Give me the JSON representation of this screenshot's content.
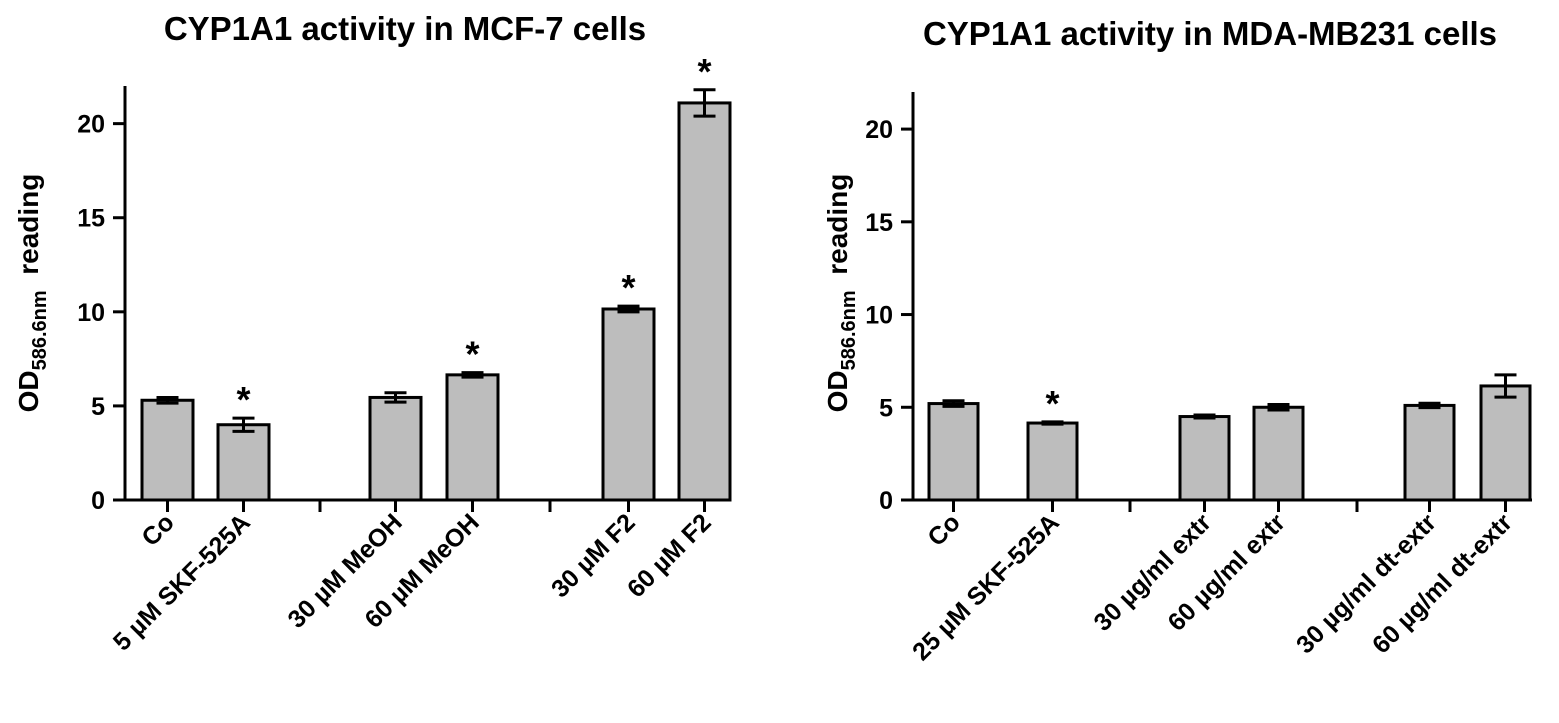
{
  "chart_data": [
    {
      "type": "bar",
      "title": "CYP1A1 activity in MCF-7 cells",
      "ylabel_main": "OD",
      "ylabel_sub": "586.6nm",
      "ylabel_tail": "reading",
      "ylim": [
        0,
        22
      ],
      "yticks": [
        0,
        5,
        10,
        15,
        20
      ],
      "groups": [
        {
          "categories": [
            "Co",
            "5 µM SKF-525A"
          ],
          "values": [
            5.3,
            4.0
          ],
          "errors": [
            0.15,
            0.35
          ],
          "significant": [
            false,
            true
          ]
        },
        {
          "categories": [
            "30 µM MeOH",
            "60 µM MeOH"
          ],
          "values": [
            5.45,
            6.65
          ],
          "errors": [
            0.25,
            0.12
          ],
          "significant": [
            false,
            true
          ]
        },
        {
          "categories": [
            "30 µM F2",
            "60 µM F2"
          ],
          "values": [
            10.15,
            21.1
          ],
          "errors": [
            0.15,
            0.7
          ],
          "significant": [
            true,
            true
          ]
        }
      ],
      "significance_marker": "*",
      "bar_color": "#bdbdbd"
    },
    {
      "type": "bar",
      "title": "CYP1A1 activity in MDA-MB231 cells",
      "ylabel_main": "OD",
      "ylabel_sub": "586.6nm",
      "ylabel_tail": "reading",
      "ylim": [
        0,
        22
      ],
      "yticks": [
        0,
        5,
        10,
        15,
        20
      ],
      "groups": [
        {
          "categories": [
            "Co",
            "25 µM SKF-525A"
          ],
          "values": [
            5.2,
            4.15
          ],
          "errors": [
            0.15,
            0.06
          ],
          "significant": [
            false,
            true
          ]
        },
        {
          "categories": [
            "30 µg/ml extr",
            "60 µg/ml extr"
          ],
          "values": [
            4.5,
            5.0
          ],
          "errors": [
            0.08,
            0.15
          ],
          "significant": [
            false,
            false
          ]
        },
        {
          "categories": [
            "30 µg/ml dt-extr",
            "60 µg/ml dt-extr"
          ],
          "values": [
            5.1,
            6.15
          ],
          "errors": [
            0.12,
            0.6
          ],
          "significant": [
            false,
            false
          ]
        }
      ],
      "significance_marker": "*",
      "bar_color": "#bdbdbd"
    }
  ]
}
